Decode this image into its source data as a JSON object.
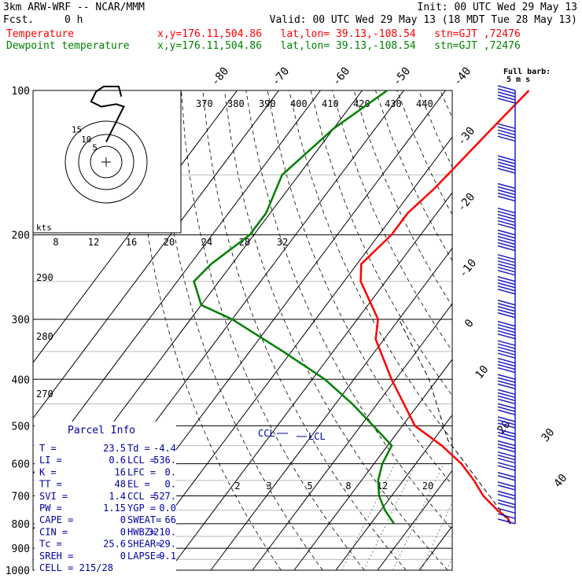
{
  "header": {
    "model": "3km ARW-WRF -- NCAR/MMM",
    "init": "Init: 00 UTC Wed 29 May 13",
    "fcst_label": "Fcst.",
    "fcst_value": "0 h",
    "valid": "Valid: 00 UTC Wed 29 May 13 (18 MDT Tue 28 May 13)",
    "temp_label": "Temperature",
    "dew_label": "Dewpoint temperature",
    "location_line": "x,y=176.11,504.86   lat,lon= 39.13,-108.54   stn=GJT ,72476"
  },
  "barb_label": [
    "Full barb:",
    "5 m s"
  ],
  "hodograph": {
    "units": "kts",
    "rings": [
      "5",
      "10",
      "15"
    ]
  },
  "parcel": {
    "title": "Parcel Info",
    "rows": [
      {
        "a": "T  =",
        "av": "23.5",
        "b": "Td =",
        "bv": "-4.4"
      },
      {
        "a": "LI =",
        "av": "0.6",
        "b": "LCL =",
        "bv": "536."
      },
      {
        "a": "K  =",
        "av": "16",
        "b": "LFC =",
        "bv": "0."
      },
      {
        "a": "TT =",
        "av": "48",
        "b": "EL  =",
        "bv": "0."
      },
      {
        "a": "SVI =",
        "av": "1.4",
        "b": "CCL =",
        "bv": "527."
      },
      {
        "a": "PW =",
        "av": "1.15",
        "b": "YGP =",
        "bv": "0.0"
      },
      {
        "a": "CAPE =",
        "av": "0",
        "b": "SWEAT=",
        "bv": "66"
      },
      {
        "a": "CIN =",
        "av": "0",
        "b": "HWBZ=",
        "bv": "3210."
      },
      {
        "a": "Tc =",
        "av": "25.6",
        "b": "SHEAR=",
        "bv": "29."
      },
      {
        "a": "SREH =",
        "av": "0",
        "b": "LAPSE=",
        "bv": "9.1"
      }
    ],
    "cell": "CELL = 215/28"
  },
  "annotations": {
    "ccl": "CCL",
    "lcl": "LCL"
  },
  "colors": {
    "temperature": "#ff0000",
    "dewpoint": "#007f00",
    "parcel_text": "#0000a0",
    "barbs": "#2020c0",
    "isotherm": "#000000",
    "adiabat": "#000000"
  },
  "chart_data": {
    "type": "line",
    "title": "",
    "y_axis": "pressure (hPa)",
    "x_axis": "temperature (C), skewed",
    "pressure_labels": [
      "100",
      "200",
      "300",
      "400",
      "500",
      "600",
      "700",
      "800",
      "900",
      "1000"
    ],
    "pressure_levels": [
      100,
      200,
      300,
      400,
      500,
      600,
      700,
      800,
      900,
      1000
    ],
    "isotherm_labels_top": [
      "-80",
      "-70",
      "-60",
      "-50",
      "-40"
    ],
    "isotherm_labels_right": [
      "-30",
      "-20",
      "-10",
      "0",
      "10",
      "20",
      "30",
      "40"
    ],
    "isotherm_values_top": [
      -80,
      -70,
      -60,
      -50,
      -40
    ],
    "isotherm_values_right": [
      -30,
      -20,
      -10,
      0,
      10,
      20,
      30,
      40
    ],
    "theta_labels": [
      "370",
      "380",
      "390",
      "400",
      "410",
      "420",
      "430",
      "440"
    ],
    "theta_values": [
      370,
      380,
      390,
      400,
      410,
      420,
      430,
      440
    ],
    "mixing_ratio_labels": [
      "2",
      "3",
      "5",
      "8",
      "12",
      "20"
    ],
    "mixing_ratio_values": [
      2,
      3,
      5,
      8,
      12,
      20
    ],
    "theta_e_labels": [
      "290",
      "280",
      "270"
    ],
    "theta_e_values": [
      290,
      280,
      270
    ],
    "hodo_scale_labels": [
      "8",
      "12",
      "16",
      "20",
      "24",
      "28",
      "32"
    ],
    "hodo_scale_values": [
      8,
      12,
      16,
      20,
      24,
      28,
      32
    ],
    "series": [
      {
        "name": "Temperature",
        "points": [
          [
            100,
            -50
          ],
          [
            120,
            -52
          ],
          [
            160,
            -55
          ],
          [
            180,
            -57
          ],
          [
            200,
            -57
          ],
          [
            230,
            -59
          ],
          [
            250,
            -56
          ],
          [
            300,
            -45
          ],
          [
            330,
            -42
          ],
          [
            400,
            -31
          ],
          [
            500,
            -17
          ],
          [
            550,
            -7
          ],
          [
            600,
            1
          ],
          [
            650,
            7
          ],
          [
            700,
            12
          ],
          [
            750,
            18
          ],
          [
            780,
            22
          ],
          [
            800,
            23.5
          ]
        ]
      },
      {
        "name": "Dewpoint temperature",
        "points": [
          [
            100,
            -84
          ],
          [
            120,
            -90
          ],
          [
            150,
            -94
          ],
          [
            180,
            -91
          ],
          [
            200,
            -91
          ],
          [
            230,
            -95
          ],
          [
            250,
            -96
          ],
          [
            280,
            -90
          ],
          [
            300,
            -80
          ],
          [
            350,
            -62
          ],
          [
            400,
            -47
          ],
          [
            450,
            -36
          ],
          [
            500,
            -27
          ],
          [
            550,
            -19
          ],
          [
            600,
            -18
          ],
          [
            650,
            -16
          ],
          [
            700,
            -13
          ],
          [
            750,
            -9
          ],
          [
            800,
            -4.4
          ]
        ]
      }
    ],
    "parcel_ascent": [
      [
        800,
        23.5
      ],
      [
        536,
        -6.5
      ],
      [
        400,
        -22
      ],
      [
        300,
        -40
      ]
    ],
    "wind_barbs": [
      {
        "p": 100,
        "n": 5
      },
      {
        "p": 120,
        "n": 5
      },
      {
        "p": 140,
        "n": 5
      },
      {
        "p": 160,
        "n": 5
      },
      {
        "p": 180,
        "n": 6
      },
      {
        "p": 200,
        "n": 6
      },
      {
        "p": 225,
        "n": 6
      },
      {
        "p": 250,
        "n": 5
      },
      {
        "p": 280,
        "n": 5
      },
      {
        "p": 310,
        "n": 5
      },
      {
        "p": 340,
        "n": 5
      },
      {
        "p": 370,
        "n": 4
      },
      {
        "p": 400,
        "n": 4
      },
      {
        "p": 430,
        "n": 4
      },
      {
        "p": 460,
        "n": 3
      },
      {
        "p": 490,
        "n": 3
      },
      {
        "p": 520,
        "n": 3
      },
      {
        "p": 550,
        "n": 3
      },
      {
        "p": 580,
        "n": 3
      },
      {
        "p": 610,
        "n": 2
      },
      {
        "p": 640,
        "n": 2
      },
      {
        "p": 670,
        "n": 2
      },
      {
        "p": 700,
        "n": 2
      },
      {
        "p": 730,
        "n": 2
      },
      {
        "p": 760,
        "n": 1
      },
      {
        "p": 780,
        "n": 1
      },
      {
        "p": 800,
        "n": 1
      }
    ],
    "hodograph_trace": [
      [
        0,
        -8
      ],
      [
        2,
        -12
      ],
      [
        4,
        -16
      ],
      [
        6,
        -20
      ],
      [
        7,
        -22
      ],
      [
        4,
        -23
      ],
      [
        -2,
        -22
      ],
      [
        -6,
        -24
      ],
      [
        -4,
        -28
      ],
      [
        -1,
        -30
      ],
      [
        2,
        -30
      ],
      [
        5,
        -30
      ],
      [
        6,
        -26
      ]
    ]
  }
}
